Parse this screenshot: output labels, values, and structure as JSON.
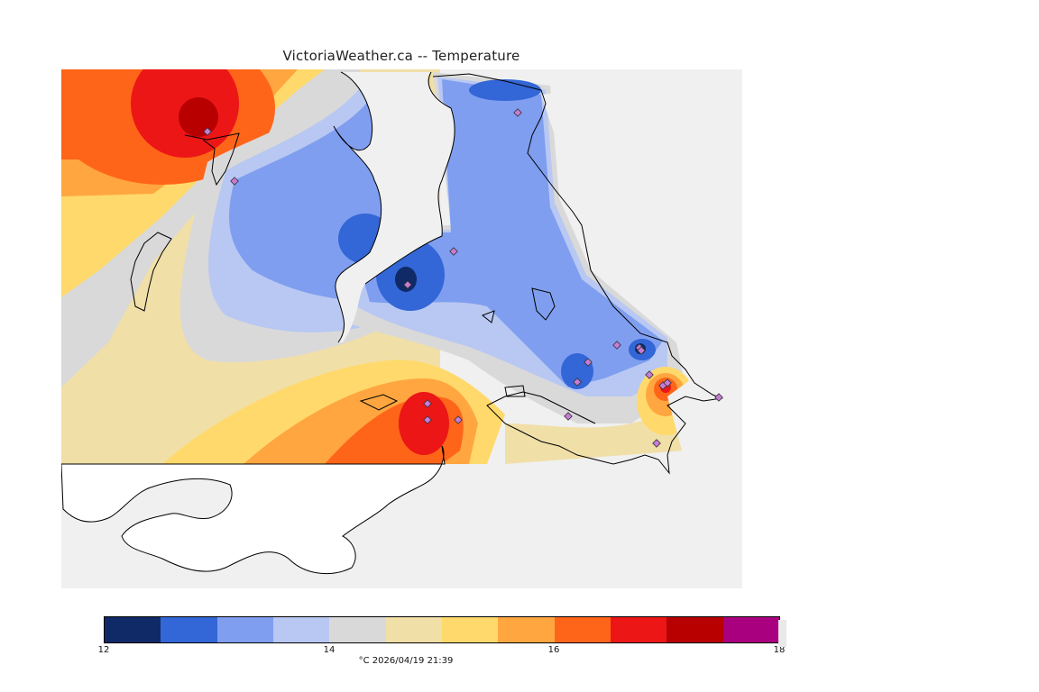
{
  "title": "VictoriaWeather.ca -- Temperature",
  "legend": {
    "colors": [
      "#0f2a66",
      "#3366d6",
      "#7f9ef0",
      "#b8c8f2",
      "#d9d9d9",
      "#f1dfa8",
      "#ffd96b",
      "#ffa640",
      "#ff6519",
      "#ec1616",
      "#b90000",
      "#a8007f"
    ],
    "ticks": [
      "12",
      "14",
      "16",
      "18"
    ],
    "min": 12,
    "max": 18,
    "caption": "°C  2026/04/19 21:39"
  },
  "map": {
    "background": "#f0f0f0",
    "land_color": "#ffffff",
    "coast_color": "#000000",
    "station_color": "#c77cd6"
  }
}
